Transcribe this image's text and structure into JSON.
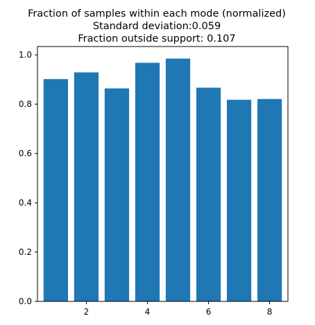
{
  "chart_data": {
    "type": "bar",
    "title_lines": [
      "Fraction of samples within each mode (normalized)",
      "Standard deviation:0.059",
      "Fraction outside support: 0.107"
    ],
    "xlabel": "",
    "ylabel": "",
    "x": [
      1,
      2,
      3,
      4,
      5,
      6,
      7,
      8
    ],
    "values": [
      0.902,
      0.929,
      0.864,
      0.968,
      0.985,
      0.867,
      0.818,
      0.821
    ],
    "bar_color": "#1f77b4",
    "xlim": [
      0.4,
      8.6
    ],
    "ylim": [
      0,
      1.034
    ],
    "xticks": [
      2,
      4,
      6,
      8
    ],
    "xtick_labels": [
      "2",
      "4",
      "6",
      "8"
    ],
    "yticks": [
      0.0,
      0.2,
      0.4,
      0.6,
      0.8,
      1.0
    ],
    "ytick_labels": [
      "0.0",
      "0.2",
      "0.4",
      "0.6",
      "0.8",
      "1.0"
    ],
    "grid": false,
    "legend": "none"
  }
}
